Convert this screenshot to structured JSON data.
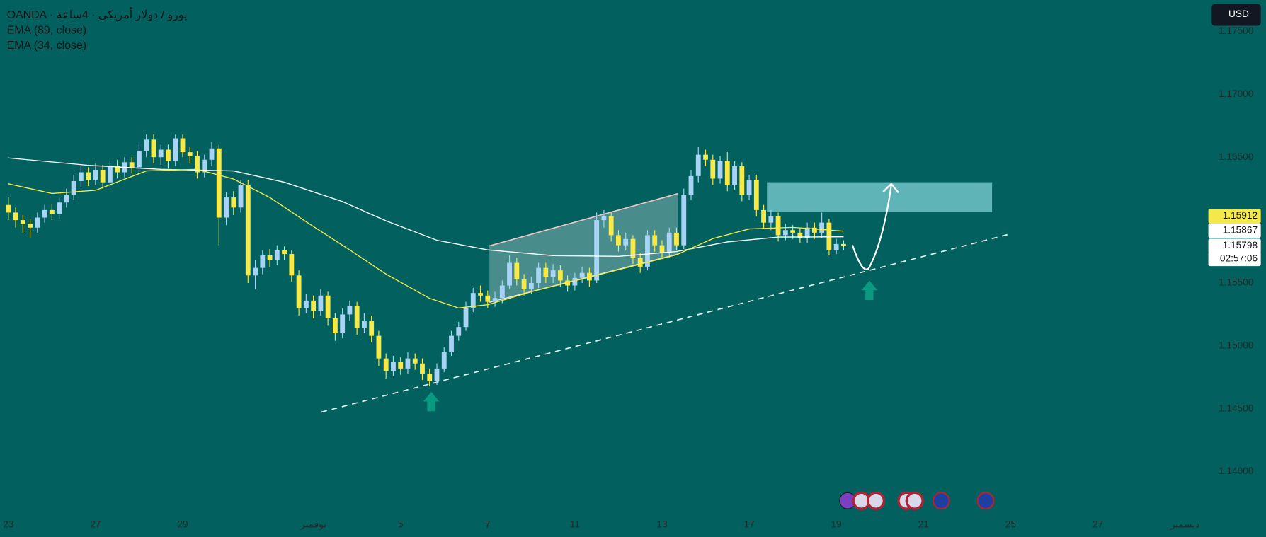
{
  "header": {
    "title": "OANDA · يورو / دولار أمريكي · 4ساعة",
    "currency": "USD"
  },
  "chart_data": {
    "type": "candlestick",
    "up_color": "#a9d3f5",
    "down_color": "#f7ea48",
    "grid": false,
    "xlim": [
      -1.1,
      165
    ],
    "ylim": [
      1.13647,
      1.1775
    ],
    "xticks": [
      {
        "value": 0,
        "label": "23"
      },
      {
        "value": 12,
        "label": "27"
      },
      {
        "value": 24,
        "label": "29"
      },
      {
        "value": 42,
        "label": "نوفمبر"
      },
      {
        "value": 54,
        "label": "5"
      },
      {
        "value": 66,
        "label": "7"
      },
      {
        "value": 78,
        "label": "11"
      },
      {
        "value": 90,
        "label": "13"
      },
      {
        "value": 102,
        "label": "17"
      },
      {
        "value": 114,
        "label": "19"
      },
      {
        "value": 126,
        "label": "21"
      },
      {
        "value": 138,
        "label": "25"
      },
      {
        "value": 150,
        "label": "27"
      },
      {
        "value": 162,
        "label": "ديسمبر"
      }
    ],
    "yticks": [
      {
        "value": 1.175,
        "label": "1.17500"
      },
      {
        "value": 1.17,
        "label": "1.17000"
      },
      {
        "value": 1.165,
        "label": "1.16500"
      },
      {
        "value": 1.155,
        "label": "1.15500"
      },
      {
        "value": 1.15,
        "label": "1.15000"
      },
      {
        "value": 1.145,
        "label": "1.14500"
      },
      {
        "value": 1.14,
        "label": "1.14000"
      }
    ],
    "x": [
      0,
      1,
      2,
      3,
      4,
      5,
      6,
      7,
      8,
      9,
      10,
      11,
      12,
      13,
      14,
      15,
      16,
      17,
      18,
      19,
      20,
      21,
      22,
      23,
      24,
      25,
      26,
      27,
      28,
      29,
      30,
      31,
      32,
      33,
      34,
      35,
      36,
      37,
      38,
      39,
      40,
      41,
      42,
      43,
      44,
      45,
      46,
      47,
      48,
      49,
      50,
      51,
      52,
      53,
      54,
      55,
      56,
      57,
      58,
      59,
      60,
      61,
      62,
      63,
      64,
      65,
      66,
      67,
      68,
      69,
      70,
      71,
      72,
      73,
      74,
      75,
      76,
      77,
      78,
      79,
      80,
      81,
      82,
      83,
      84,
      85,
      86,
      87,
      88,
      89,
      90,
      91,
      92,
      93,
      94,
      95,
      96,
      97,
      98,
      99,
      100,
      101,
      102,
      103,
      104,
      105,
      106,
      107,
      108,
      109,
      110,
      111,
      112,
      113,
      114,
      115
    ],
    "open": [
      1.1612,
      1.1606,
      1.16,
      1.1597,
      1.1594,
      1.1602,
      1.1608,
      1.1605,
      1.1614,
      1.162,
      1.1631,
      1.1638,
      1.1632,
      1.164,
      1.163,
      1.1643,
      1.1638,
      1.1646,
      1.1642,
      1.1655,
      1.1664,
      1.165,
      1.1656,
      1.1647,
      1.1665,
      1.1654,
      1.1651,
      1.1638,
      1.1648,
      1.1657,
      1.1602,
      1.1618,
      1.161,
      1.1628,
      1.1556,
      1.1562,
      1.1572,
      1.1568,
      1.1576,
      1.1573,
      1.1556,
      1.153,
      1.1536,
      1.1528,
      1.154,
      1.1522,
      1.151,
      1.1525,
      1.1532,
      1.1514,
      1.152,
      1.1508,
      1.149,
      1.148,
      1.1487,
      1.1482,
      1.149,
      1.1486,
      1.1478,
      1.1472,
      1.1482,
      1.1495,
      1.1508,
      1.1515,
      1.153,
      1.1542,
      1.154,
      1.1535,
      1.1538,
      1.1548,
      1.1566,
      1.1553,
      1.1545,
      1.155,
      1.1562,
      1.1555,
      1.156,
      1.1552,
      1.1548,
      1.1554,
      1.1558,
      1.1552,
      1.16,
      1.1603,
      1.1588,
      1.158,
      1.1585,
      1.157,
      1.1563,
      1.1588,
      1.158,
      1.1574,
      1.159,
      1.158,
      1.162,
      1.1635,
      1.1652,
      1.1648,
      1.1633,
      1.1647,
      1.1628,
      1.1643,
      1.162,
      1.1632,
      1.1608,
      1.1598,
      1.1603,
      1.1588,
      1.1592,
      1.159,
      1.1586,
      1.1594,
      1.159,
      1.1598,
      1.1576,
      1.1581
    ],
    "high": [
      1.1618,
      1.161,
      1.1604,
      1.1601,
      1.1606,
      1.1612,
      1.1613,
      1.1618,
      1.1625,
      1.1636,
      1.1643,
      1.1642,
      1.1645,
      1.1644,
      1.1647,
      1.1648,
      1.165,
      1.165,
      1.166,
      1.1668,
      1.1668,
      1.166,
      1.166,
      1.1668,
      1.1668,
      1.1658,
      1.1655,
      1.1652,
      1.1662,
      1.166,
      1.1622,
      1.1623,
      1.1632,
      1.1632,
      1.1568,
      1.1576,
      1.1577,
      1.158,
      1.1579,
      1.1576,
      1.156,
      1.1541,
      1.154,
      1.1545,
      1.1543,
      1.1526,
      1.153,
      1.1536,
      1.1535,
      1.1526,
      1.1524,
      1.1512,
      1.1494,
      1.1492,
      1.1491,
      1.1495,
      1.1494,
      1.149,
      1.1482,
      1.1486,
      1.1499,
      1.1512,
      1.1519,
      1.1535,
      1.1546,
      1.1548,
      1.1544,
      1.1543,
      1.1552,
      1.1572,
      1.157,
      1.1557,
      1.1555,
      1.1566,
      1.1566,
      1.1565,
      1.1564,
      1.1556,
      1.1558,
      1.1563,
      1.1562,
      1.1606,
      1.1608,
      1.1606,
      1.1592,
      1.159,
      1.1588,
      1.1574,
      1.1592,
      1.1592,
      1.1584,
      1.1594,
      1.1594,
      1.1625,
      1.164,
      1.1658,
      1.1656,
      1.1652,
      1.1651,
      1.1654,
      1.1647,
      1.1646,
      1.1636,
      1.1636,
      1.1612,
      1.1608,
      1.1606,
      1.1597,
      1.1596,
      1.1594,
      1.1598,
      1.1598,
      1.1606,
      1.1601,
      1.1585,
      1.1584
    ],
    "low": [
      1.16,
      1.1594,
      1.159,
      1.1586,
      1.159,
      1.1598,
      1.16,
      1.1601,
      1.161,
      1.1616,
      1.1626,
      1.1627,
      1.1628,
      1.1625,
      1.1626,
      1.1633,
      1.1634,
      1.1637,
      1.1638,
      1.165,
      1.1645,
      1.1644,
      1.1641,
      1.1643,
      1.165,
      1.1645,
      1.1633,
      1.1634,
      1.1643,
      1.158,
      1.1596,
      1.1604,
      1.1606,
      1.155,
      1.1545,
      1.1557,
      1.1563,
      1.1564,
      1.1568,
      1.1551,
      1.1524,
      1.1526,
      1.1522,
      1.1524,
      1.1516,
      1.1504,
      1.1506,
      1.152,
      1.1509,
      1.151,
      1.1503,
      1.1484,
      1.1474,
      1.1476,
      1.1477,
      1.1478,
      1.1481,
      1.1473,
      1.1468,
      1.1469,
      1.1479,
      1.1492,
      1.1504,
      1.1512,
      1.1527,
      1.1535,
      1.153,
      1.1531,
      1.1534,
      1.1545,
      1.1548,
      1.154,
      1.1541,
      1.1546,
      1.155,
      1.155,
      1.1547,
      1.1543,
      1.1544,
      1.155,
      1.1547,
      1.155,
      1.1594,
      1.1583,
      1.1575,
      1.1576,
      1.1565,
      1.1558,
      1.156,
      1.1575,
      1.1569,
      1.157,
      1.1576,
      1.1577,
      1.1616,
      1.163,
      1.1643,
      1.1628,
      1.1629,
      1.1623,
      1.1624,
      1.1615,
      1.1616,
      1.1603,
      1.1593,
      1.1592,
      1.1583,
      1.1584,
      1.1585,
      1.1582,
      1.1582,
      1.1585,
      1.1586,
      1.1572,
      1.1573,
      1.1576
    ],
    "close": [
      1.1606,
      1.16,
      1.1597,
      1.1594,
      1.1602,
      1.1608,
      1.1605,
      1.1614,
      1.162,
      1.1631,
      1.1638,
      1.1632,
      1.164,
      1.163,
      1.1643,
      1.1638,
      1.1646,
      1.1642,
      1.1655,
      1.1664,
      1.165,
      1.1656,
      1.1647,
      1.1665,
      1.1654,
      1.1651,
      1.1638,
      1.1648,
      1.1657,
      1.1602,
      1.1618,
      1.161,
      1.1628,
      1.1556,
      1.1562,
      1.1572,
      1.1568,
      1.1576,
      1.1573,
      1.1556,
      1.153,
      1.1536,
      1.1528,
      1.154,
      1.1522,
      1.151,
      1.1525,
      1.1532,
      1.1514,
      1.152,
      1.1508,
      1.149,
      1.148,
      1.1487,
      1.1482,
      1.149,
      1.1486,
      1.1478,
      1.1472,
      1.1482,
      1.1495,
      1.1508,
      1.1515,
      1.153,
      1.1542,
      1.154,
      1.1535,
      1.1538,
      1.1548,
      1.1566,
      1.1553,
      1.1545,
      1.155,
      1.1562,
      1.1555,
      1.156,
      1.1552,
      1.1548,
      1.1554,
      1.1558,
      1.1552,
      1.16,
      1.1603,
      1.1588,
      1.158,
      1.1585,
      1.157,
      1.1563,
      1.1588,
      1.158,
      1.1574,
      1.159,
      1.158,
      1.162,
      1.1635,
      1.1652,
      1.1648,
      1.1633,
      1.1647,
      1.1628,
      1.1643,
      1.162,
      1.1632,
      1.1608,
      1.1598,
      1.1603,
      1.1588,
      1.1592,
      1.159,
      1.1586,
      1.1594,
      1.159,
      1.1598,
      1.1576,
      1.1581,
      1.15798
    ],
    "lines": [
      {
        "name": "EMA (89, close)",
        "color": "#ffffff",
        "x": [
          0,
          11,
          21,
          31,
          38,
          46,
          52,
          59,
          66,
          75,
          84,
          92,
          99,
          106,
          115
        ],
        "values": [
          1.16494,
          1.16436,
          1.16404,
          1.16391,
          1.16301,
          1.16147,
          1.15994,
          1.1584,
          1.15763,
          1.15718,
          1.15712,
          1.1575,
          1.15827,
          1.15865,
          1.15867
        ]
      },
      {
        "name": "EMA (34, close)",
        "color": "#f5e94a",
        "x": [
          0,
          6,
          12,
          19,
          26,
          31,
          36,
          41,
          47,
          52,
          58,
          62,
          66,
          72,
          79,
          86,
          92,
          97,
          102,
          108,
          115
        ],
        "values": [
          1.16288,
          1.16212,
          1.16237,
          1.16391,
          1.16404,
          1.16327,
          1.1618,
          1.15987,
          1.15763,
          1.15571,
          1.15378,
          1.15301,
          1.15327,
          1.1543,
          1.15532,
          1.15635,
          1.15724,
          1.15853,
          1.1593,
          1.15942,
          1.15912
        ]
      }
    ],
    "countdown": "02:57:06"
  }
}
